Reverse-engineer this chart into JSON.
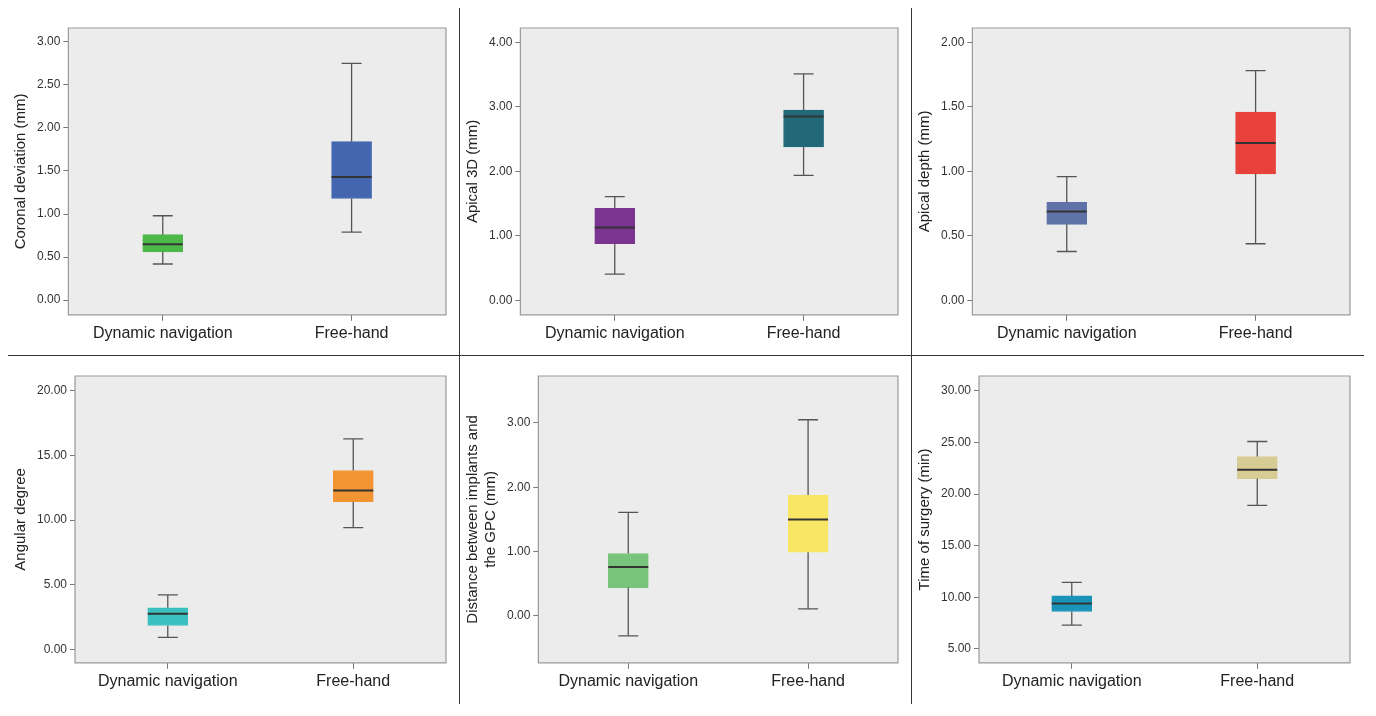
{
  "chart_data": [
    {
      "type": "box",
      "ylabel": "Coronal deviation (mm)",
      "categories": [
        "Dynamic navigation",
        "Free-hand"
      ],
      "colors": [
        "#4cb848",
        "#4466b0"
      ],
      "ylim": [
        -0.17,
        3.16
      ],
      "yticks": [
        {
          "value": 0,
          "label": "0.00"
        },
        {
          "value": 0.5,
          "label": "0.50"
        },
        {
          "value": 1,
          "label": "1.00"
        },
        {
          "value": 1.5,
          "label": "1.50"
        },
        {
          "value": 2,
          "label": "2.00"
        },
        {
          "value": 2.5,
          "label": "2.50"
        },
        {
          "value": 3,
          "label": "3.00"
        }
      ],
      "boxes": [
        {
          "low": 0.42,
          "q1": 0.56,
          "median": 0.65,
          "q3": 0.76,
          "high": 0.98
        },
        {
          "low": 0.79,
          "q1": 1.18,
          "median": 1.43,
          "q3": 1.84,
          "high": 2.75
        }
      ]
    },
    {
      "type": "box",
      "ylabel": "Apical 3D (mm)",
      "categories": [
        "Dynamic navigation",
        "Free-hand"
      ],
      "colors": [
        "#7b3590",
        "#226878"
      ],
      "ylim": [
        -0.22,
        4.22
      ],
      "yticks": [
        {
          "value": 0,
          "label": "0.00"
        },
        {
          "value": 1,
          "label": "1.00"
        },
        {
          "value": 2,
          "label": "2.00"
        },
        {
          "value": 3,
          "label": "3.00"
        },
        {
          "value": 4,
          "label": "4.00"
        }
      ],
      "boxes": [
        {
          "low": 0.41,
          "q1": 0.88,
          "median": 1.13,
          "q3": 1.43,
          "high": 1.61
        },
        {
          "low": 1.94,
          "q1": 2.38,
          "median": 2.85,
          "q3": 2.95,
          "high": 3.51
        }
      ]
    },
    {
      "type": "box",
      "ylabel": "Apical depth (mm)",
      "categories": [
        "Dynamic navigation",
        "Free-hand"
      ],
      "colors": [
        "#5f73a8",
        "#e8403a"
      ],
      "ylim": [
        -0.11,
        2.11
      ],
      "yticks": [
        {
          "value": 0,
          "label": "0.00"
        },
        {
          "value": 0.5,
          "label": "0.50"
        },
        {
          "value": 1,
          "label": "1.00"
        },
        {
          "value": 1.5,
          "label": "1.50"
        },
        {
          "value": 2,
          "label": "2.00"
        }
      ],
      "boxes": [
        {
          "low": 0.38,
          "q1": 0.59,
          "median": 0.69,
          "q3": 0.76,
          "high": 0.96
        },
        {
          "low": 0.44,
          "q1": 0.98,
          "median": 1.22,
          "q3": 1.46,
          "high": 1.78
        }
      ]
    },
    {
      "type": "box",
      "ylabel": "Angular degree",
      "categories": [
        "Dynamic navigation",
        "Free-hand"
      ],
      "colors": [
        "#3bbfbf",
        "#f39432"
      ],
      "ylim": [
        -1.05,
        21.16
      ],
      "yticks": [
        {
          "value": 0,
          "label": "0.00"
        },
        {
          "value": 5,
          "label": "5.00"
        },
        {
          "value": 10,
          "label": "10.00"
        },
        {
          "value": 15,
          "label": "15.00"
        },
        {
          "value": 20,
          "label": "20.00"
        }
      ],
      "boxes": [
        {
          "low": 0.92,
          "q1": 1.84,
          "median": 2.74,
          "q3": 3.21,
          "high": 4.21
        },
        {
          "low": 9.42,
          "q1": 11.42,
          "median": 12.29,
          "q3": 13.84,
          "high": 16.29
        }
      ]
    },
    {
      "type": "box",
      "ylabel": "Distance between implants and the GPC (mm)",
      "categories": [
        "Dynamic navigation",
        "Free-hand"
      ],
      "colors": [
        "#78c47a",
        "#f8e665"
      ],
      "ylim": [
        -0.73,
        3.73
      ],
      "yticks": [
        {
          "value": 0,
          "label": "0.00"
        },
        {
          "value": 1,
          "label": "1.00"
        },
        {
          "value": 2,
          "label": "2.00"
        },
        {
          "value": 3,
          "label": "3.00"
        }
      ],
      "boxes": [
        {
          "low": -0.31,
          "q1": 0.44,
          "median": 0.76,
          "q3": 0.97,
          "high": 1.61
        },
        {
          "low": 0.11,
          "q1": 0.99,
          "median": 1.5,
          "q3": 1.88,
          "high": 3.05
        }
      ]
    },
    {
      "type": "box",
      "ylabel": "Time of surgery (min)",
      "categories": [
        "Dynamic navigation",
        "Free-hand"
      ],
      "colors": [
        "#1a93b8",
        "#d6cc94"
      ],
      "ylim": [
        3.65,
        31.45
      ],
      "yticks": [
        {
          "value": 5,
          "label": "5.00"
        },
        {
          "value": 10,
          "label": "10.00"
        },
        {
          "value": 15,
          "label": "15.00"
        },
        {
          "value": 20,
          "label": "20.00"
        },
        {
          "value": 25,
          "label": "25.00"
        },
        {
          "value": 30,
          "label": "30.00"
        }
      ],
      "boxes": [
        {
          "low": 7.3,
          "q1": 8.62,
          "median": 9.41,
          "q3": 10.13,
          "high": 11.45
        },
        {
          "low": 18.91,
          "q1": 21.51,
          "median": 22.37,
          "q3": 23.65,
          "high": 25.1
        }
      ]
    }
  ]
}
